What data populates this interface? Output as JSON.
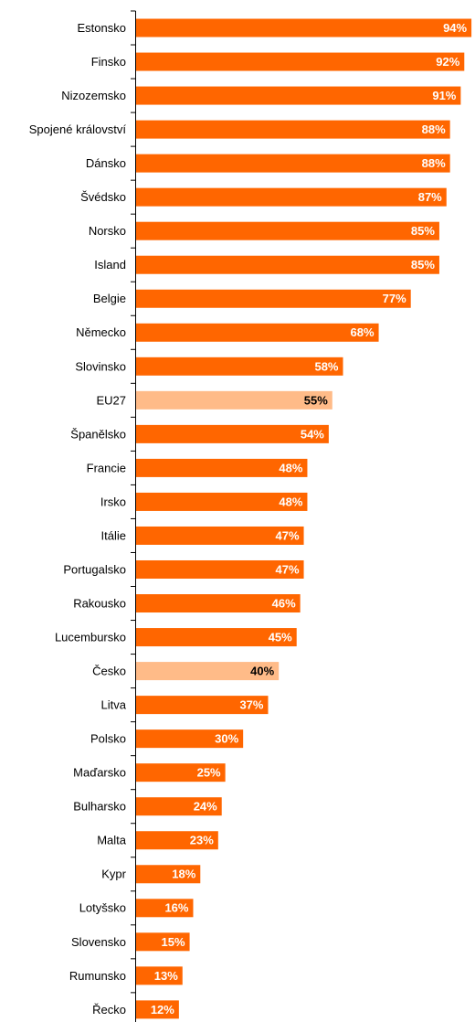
{
  "chart_data": {
    "type": "barh",
    "categories": [
      "Estonsko",
      "Finsko",
      "Nizozemsko",
      "Spojené království",
      "Dánsko",
      "Švédsko",
      "Norsko",
      "Island",
      "Belgie",
      "Německo",
      "Slovinsko",
      "EU27",
      "Španělsko",
      "Francie",
      "Irsko",
      "Itálie",
      "Portugalsko",
      "Rakousko",
      "Lucembursko",
      "Česko",
      "Litva",
      "Polsko",
      "Maďarsko",
      "Bulharsko",
      "Malta",
      "Kypr",
      "Lotyšsko",
      "Slovensko",
      "Rumunsko",
      "Řecko"
    ],
    "values": [
      94,
      92,
      91,
      88,
      88,
      87,
      85,
      85,
      77,
      68,
      58,
      55,
      54,
      48,
      48,
      47,
      47,
      46,
      45,
      40,
      37,
      30,
      25,
      24,
      23,
      18,
      16,
      15,
      13,
      12
    ],
    "value_labels": [
      "94%",
      "92%",
      "91%",
      "88%",
      "88%",
      "87%",
      "85%",
      "85%",
      "77%",
      "68%",
      "58%",
      "55%",
      "54%",
      "48%",
      "48%",
      "47%",
      "47%",
      "46%",
      "45%",
      "40%",
      "37%",
      "30%",
      "25%",
      "24%",
      "23%",
      "18%",
      "16%",
      "15%",
      "13%",
      "12%"
    ],
    "colors": [
      "#ff6600",
      "#ff6600",
      "#ff6600",
      "#ff6600",
      "#ff6600",
      "#ff6600",
      "#ff6600",
      "#ff6600",
      "#ff6600",
      "#ff6600",
      "#ff6600",
      "#ffbb88",
      "#ff6600",
      "#ff6600",
      "#ff6600",
      "#ff6600",
      "#ff6600",
      "#ff6600",
      "#ff6600",
      "#ffbb88",
      "#ff6600",
      "#ff6600",
      "#ff6600",
      "#ff6600",
      "#ff6600",
      "#ff6600",
      "#ff6600",
      "#ff6600",
      "#ff6600",
      "#ff6600"
    ],
    "label_colors": [
      "#ffffff",
      "#ffffff",
      "#ffffff",
      "#ffffff",
      "#ffffff",
      "#ffffff",
      "#ffffff",
      "#ffffff",
      "#ffffff",
      "#ffffff",
      "#ffffff",
      "#000000",
      "#ffffff",
      "#ffffff",
      "#ffffff",
      "#ffffff",
      "#ffffff",
      "#ffffff",
      "#ffffff",
      "#000000",
      "#ffffff",
      "#ffffff",
      "#ffffff",
      "#ffffff",
      "#ffffff",
      "#ffffff",
      "#ffffff",
      "#ffffff",
      "#ffffff",
      "#ffffff"
    ],
    "xlim": [
      0,
      95
    ]
  }
}
